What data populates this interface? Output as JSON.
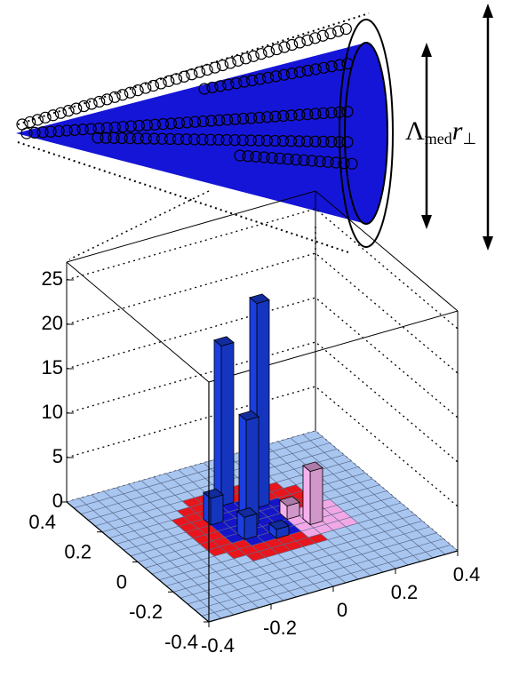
{
  "chart_data": {
    "type": "lego3d",
    "annotation": {
      "symbol": "Λ",
      "subscript": "med",
      "variable": "r",
      "sub2": "⊥"
    },
    "xlim": [
      -0.4,
      0.4
    ],
    "xticks": [
      -0.4,
      -0.2,
      0,
      0.2,
      0.4
    ],
    "ylim": [
      -0.4,
      0.4
    ],
    "yticks": [
      -0.4,
      -0.2,
      0,
      0.2,
      0.4
    ],
    "zlim": [
      0,
      27
    ],
    "zticks": [
      0,
      5,
      10,
      15,
      20,
      25
    ],
    "bins": 20,
    "bar_color": "#1a3ee0",
    "pink_color": "#f6b0ee",
    "floor_colors": [
      "#a9c6f0",
      "#e8151c",
      "#1515c8",
      "#f2a8e6"
    ],
    "bars": [
      {
        "x": 0.06,
        "y": 0.12,
        "z": 23,
        "color": "#1a3ee0"
      },
      {
        "x": -0.02,
        "y": 0.18,
        "z": 18,
        "color": "#1a3ee0"
      },
      {
        "x": -0.02,
        "y": 0.04,
        "z": 12,
        "color": "#1a3ee0"
      },
      {
        "x": -0.1,
        "y": 0.1,
        "z": 3,
        "color": "#1a3ee0"
      },
      {
        "x": -0.06,
        "y": -0.02,
        "z": 2.5,
        "color": "#1a3ee0"
      },
      {
        "x": 0.02,
        "y": -0.06,
        "z": 1,
        "color": "#1a3ee0"
      },
      {
        "x": 0.14,
        "y": -0.04,
        "z": 6,
        "color": "#f6b0ee"
      },
      {
        "x": 0.1,
        "y": 0.02,
        "z": 1.5,
        "color": "#f6b0ee"
      }
    ]
  }
}
